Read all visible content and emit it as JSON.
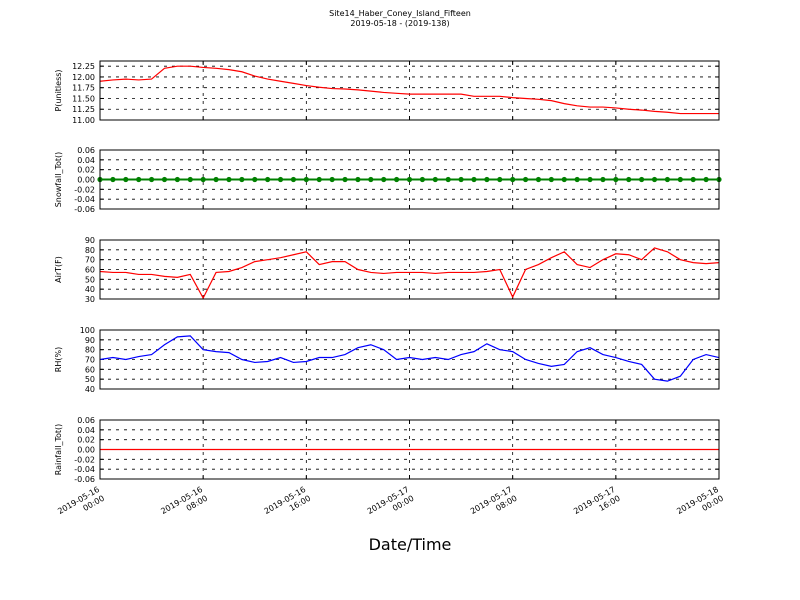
{
  "chart_data": [
    {
      "type": "line",
      "title": "Site14_Haber_Coney_Island_Fifteen",
      "subtitle": "2019-05-18 - (2019-138)",
      "ylabel": "P(unitless)",
      "grid": true,
      "ylim": [
        11.0,
        12.37
      ],
      "yticks": [
        {
          "value": 11.0,
          "label": "11.00"
        },
        11.25,
        {
          "value": 11.5,
          "label": "11.50"
        },
        11.75,
        {
          "value": 12.0,
          "label": "12.00"
        },
        12.25
      ],
      "x": [
        "2019-05-16 00:00",
        "2019-05-16 01:00",
        "2019-05-16 02:00",
        "2019-05-16 03:00",
        "2019-05-16 04:00",
        "2019-05-16 05:00",
        "2019-05-16 06:00",
        "2019-05-16 07:00",
        "2019-05-16 08:00",
        "2019-05-16 09:00",
        "2019-05-16 10:00",
        "2019-05-16 11:00",
        "2019-05-16 12:00",
        "2019-05-16 13:00",
        "2019-05-16 14:00",
        "2019-05-16 15:00",
        "2019-05-16 16:00",
        "2019-05-16 17:00",
        "2019-05-16 18:00",
        "2019-05-16 19:00",
        "2019-05-16 20:00",
        "2019-05-16 21:00",
        "2019-05-16 22:00",
        "2019-05-16 23:00",
        "2019-05-17 00:00",
        "2019-05-17 01:00",
        "2019-05-17 02:00",
        "2019-05-17 03:00",
        "2019-05-17 04:00",
        "2019-05-17 05:00",
        "2019-05-17 06:00",
        "2019-05-17 07:00",
        "2019-05-17 08:00",
        "2019-05-17 09:00",
        "2019-05-17 10:00",
        "2019-05-17 11:00",
        "2019-05-17 12:00",
        "2019-05-17 13:00",
        "2019-05-17 14:00",
        "2019-05-17 15:00",
        "2019-05-17 16:00",
        "2019-05-17 17:00",
        "2019-05-17 18:00",
        "2019-05-17 19:00",
        "2019-05-17 20:00",
        "2019-05-17 21:00",
        "2019-05-17 22:00",
        "2019-05-17 23:00",
        "2019-05-18 00:00"
      ],
      "series": [
        {
          "color": "#ff0000",
          "values": [
            11.9,
            11.93,
            11.95,
            11.93,
            11.95,
            12.2,
            12.25,
            12.25,
            12.22,
            12.2,
            12.17,
            12.12,
            12.02,
            11.95,
            11.9,
            11.85,
            11.8,
            11.76,
            11.73,
            11.72,
            11.7,
            11.67,
            11.64,
            11.62,
            11.6,
            11.6,
            11.6,
            11.6,
            11.6,
            11.55,
            11.55,
            11.55,
            11.52,
            11.5,
            11.48,
            11.45,
            11.38,
            11.33,
            11.3,
            11.3,
            11.28,
            11.25,
            11.23,
            11.2,
            11.18,
            11.15,
            11.15,
            11.15,
            11.15
          ]
        }
      ]
    },
    {
      "type": "dots",
      "ylabel": "Snowfall_Tot()",
      "grid": true,
      "ylim": [
        -0.06,
        0.06
      ],
      "yticks": [
        -0.06,
        -0.04,
        -0.02,
        {
          "value": 0,
          "label": "0.00"
        },
        0.02,
        0.04,
        0.06
      ],
      "x": [
        "2019-05-16 00:00",
        "2019-05-16 01:00",
        "2019-05-16 02:00",
        "2019-05-16 03:00",
        "2019-05-16 04:00",
        "2019-05-16 05:00",
        "2019-05-16 06:00",
        "2019-05-16 07:00",
        "2019-05-16 08:00",
        "2019-05-16 09:00",
        "2019-05-16 10:00",
        "2019-05-16 11:00",
        "2019-05-16 12:00",
        "2019-05-16 13:00",
        "2019-05-16 14:00",
        "2019-05-16 15:00",
        "2019-05-16 16:00",
        "2019-05-16 17:00",
        "2019-05-16 18:00",
        "2019-05-16 19:00",
        "2019-05-16 20:00",
        "2019-05-16 21:00",
        "2019-05-16 22:00",
        "2019-05-16 23:00",
        "2019-05-17 00:00",
        "2019-05-17 01:00",
        "2019-05-17 02:00",
        "2019-05-17 03:00",
        "2019-05-17 04:00",
        "2019-05-17 05:00",
        "2019-05-17 06:00",
        "2019-05-17 07:00",
        "2019-05-17 08:00",
        "2019-05-17 09:00",
        "2019-05-17 10:00",
        "2019-05-17 11:00",
        "2019-05-17 12:00",
        "2019-05-17 13:00",
        "2019-05-17 14:00",
        "2019-05-17 15:00",
        "2019-05-17 16:00",
        "2019-05-17 17:00",
        "2019-05-17 18:00",
        "2019-05-17 19:00",
        "2019-05-17 20:00",
        "2019-05-17 21:00",
        "2019-05-17 22:00",
        "2019-05-17 23:00",
        "2019-05-18 00:00"
      ],
      "series": [
        {
          "color": "#008000",
          "values": [
            0,
            0,
            0,
            0,
            0,
            0,
            0,
            0,
            0,
            0,
            0,
            0,
            0,
            0,
            0,
            0,
            0,
            0,
            0,
            0,
            0,
            0,
            0,
            0,
            0,
            0,
            0,
            0,
            0,
            0,
            0,
            0,
            0,
            0,
            0,
            0,
            0,
            0,
            0,
            0,
            0,
            0,
            0,
            0,
            0,
            0,
            0,
            0,
            0
          ]
        }
      ]
    },
    {
      "type": "line",
      "ylabel": "AirT(F)",
      "grid": true,
      "ylim": [
        30,
        90
      ],
      "yticks": [
        30,
        40,
        50,
        60,
        70,
        80,
        90
      ],
      "x": [
        "2019-05-16 00:00",
        "2019-05-16 01:00",
        "2019-05-16 02:00",
        "2019-05-16 03:00",
        "2019-05-16 04:00",
        "2019-05-16 05:00",
        "2019-05-16 06:00",
        "2019-05-16 07:00",
        "2019-05-16 08:00",
        "2019-05-16 09:00",
        "2019-05-16 10:00",
        "2019-05-16 11:00",
        "2019-05-16 12:00",
        "2019-05-16 13:00",
        "2019-05-16 14:00",
        "2019-05-16 15:00",
        "2019-05-16 16:00",
        "2019-05-16 17:00",
        "2019-05-16 18:00",
        "2019-05-16 19:00",
        "2019-05-16 20:00",
        "2019-05-16 21:00",
        "2019-05-16 22:00",
        "2019-05-16 23:00",
        "2019-05-17 00:00",
        "2019-05-17 01:00",
        "2019-05-17 02:00",
        "2019-05-17 03:00",
        "2019-05-17 04:00",
        "2019-05-17 05:00",
        "2019-05-17 06:00",
        "2019-05-17 07:00",
        "2019-05-17 08:00",
        "2019-05-17 09:00",
        "2019-05-17 10:00",
        "2019-05-17 11:00",
        "2019-05-17 12:00",
        "2019-05-17 13:00",
        "2019-05-17 14:00",
        "2019-05-17 15:00",
        "2019-05-17 16:00",
        "2019-05-17 17:00",
        "2019-05-17 18:00",
        "2019-05-17 19:00",
        "2019-05-17 20:00",
        "2019-05-17 21:00",
        "2019-05-17 22:00",
        "2019-05-17 23:00",
        "2019-05-18 00:00"
      ],
      "series": [
        {
          "color": "#ff0000",
          "values": [
            58,
            57,
            57,
            55,
            55,
            53,
            52,
            55,
            31,
            57,
            58,
            62,
            68,
            70,
            72,
            75,
            78,
            65,
            68,
            68,
            60,
            57,
            56,
            57,
            57,
            57,
            56,
            57,
            57,
            57,
            58,
            60,
            32,
            60,
            65,
            72,
            78,
            65,
            62,
            70,
            76,
            75,
            70,
            82,
            78,
            70,
            67,
            66,
            67
          ]
        }
      ]
    },
    {
      "type": "line",
      "ylabel": "RH(%)",
      "grid": true,
      "ylim": [
        40,
        100
      ],
      "yticks": [
        40,
        50,
        60,
        70,
        80,
        90,
        100
      ],
      "x": [
        "2019-05-16 00:00",
        "2019-05-16 01:00",
        "2019-05-16 02:00",
        "2019-05-16 03:00",
        "2019-05-16 04:00",
        "2019-05-16 05:00",
        "2019-05-16 06:00",
        "2019-05-16 07:00",
        "2019-05-16 08:00",
        "2019-05-16 09:00",
        "2019-05-16 10:00",
        "2019-05-16 11:00",
        "2019-05-16 12:00",
        "2019-05-16 13:00",
        "2019-05-16 14:00",
        "2019-05-16 15:00",
        "2019-05-16 16:00",
        "2019-05-16 17:00",
        "2019-05-16 18:00",
        "2019-05-16 19:00",
        "2019-05-16 20:00",
        "2019-05-16 21:00",
        "2019-05-16 22:00",
        "2019-05-16 23:00",
        "2019-05-17 00:00",
        "2019-05-17 01:00",
        "2019-05-17 02:00",
        "2019-05-17 03:00",
        "2019-05-17 04:00",
        "2019-05-17 05:00",
        "2019-05-17 06:00",
        "2019-05-17 07:00",
        "2019-05-17 08:00",
        "2019-05-17 09:00",
        "2019-05-17 10:00",
        "2019-05-17 11:00",
        "2019-05-17 12:00",
        "2019-05-17 13:00",
        "2019-05-17 14:00",
        "2019-05-17 15:00",
        "2019-05-17 16:00",
        "2019-05-17 17:00",
        "2019-05-17 18:00",
        "2019-05-17 19:00",
        "2019-05-17 20:00",
        "2019-05-17 21:00",
        "2019-05-17 22:00",
        "2019-05-17 23:00",
        "2019-05-18 00:00"
      ],
      "series": [
        {
          "color": "#0000ff",
          "values": [
            70,
            72,
            70,
            73,
            75,
            85,
            93,
            94,
            80,
            78,
            77,
            70,
            67,
            68,
            72,
            67,
            68,
            72,
            72,
            75,
            82,
            85,
            80,
            70,
            72,
            70,
            72,
            70,
            75,
            78,
            86,
            80,
            78,
            70,
            66,
            63,
            65,
            78,
            82,
            75,
            72,
            68,
            65,
            50,
            48,
            53,
            70,
            75,
            72
          ]
        }
      ]
    },
    {
      "type": "line",
      "ylabel": "Rainfall_Tot()",
      "xlabel": "Date/Time",
      "grid": true,
      "ylim": [
        -0.06,
        0.06
      ],
      "yticks": [
        -0.06,
        -0.04,
        -0.02,
        {
          "value": 0,
          "label": "0.00"
        },
        0.02,
        0.04,
        0.06
      ],
      "xlim": [
        "2019-05-16 00:00",
        "2019-05-18 00:00"
      ],
      "xticks": [
        "2019-05-16 00:00",
        "2019-05-16 08:00",
        "2019-05-16 16:00",
        "2019-05-17 00:00",
        "2019-05-17 08:00",
        "2019-05-17 16:00",
        "2019-05-18 00:00"
      ],
      "x": [
        "2019-05-16 00:00",
        "2019-05-16 01:00",
        "2019-05-16 02:00",
        "2019-05-16 03:00",
        "2019-05-16 04:00",
        "2019-05-16 05:00",
        "2019-05-16 06:00",
        "2019-05-16 07:00",
        "2019-05-16 08:00",
        "2019-05-16 09:00",
        "2019-05-16 10:00",
        "2019-05-16 11:00",
        "2019-05-16 12:00",
        "2019-05-16 13:00",
        "2019-05-16 14:00",
        "2019-05-16 15:00",
        "2019-05-16 16:00",
        "2019-05-16 17:00",
        "2019-05-16 18:00",
        "2019-05-16 19:00",
        "2019-05-16 20:00",
        "2019-05-16 21:00",
        "2019-05-16 22:00",
        "2019-05-16 23:00",
        "2019-05-17 00:00",
        "2019-05-17 01:00",
        "2019-05-17 02:00",
        "2019-05-17 03:00",
        "2019-05-17 04:00",
        "2019-05-17 05:00",
        "2019-05-17 06:00",
        "2019-05-17 07:00",
        "2019-05-17 08:00",
        "2019-05-17 09:00",
        "2019-05-17 10:00",
        "2019-05-17 11:00",
        "2019-05-17 12:00",
        "2019-05-17 13:00",
        "2019-05-17 14:00",
        "2019-05-17 15:00",
        "2019-05-17 16:00",
        "2019-05-17 17:00",
        "2019-05-17 18:00",
        "2019-05-17 19:00",
        "2019-05-17 20:00",
        "2019-05-17 21:00",
        "2019-05-17 22:00",
        "2019-05-17 23:00",
        "2019-05-18 00:00"
      ],
      "series": [
        {
          "color": "#ff0000",
          "values": [
            0,
            0,
            0,
            0,
            0,
            0,
            0,
            0,
            0,
            0,
            0,
            0,
            0,
            0,
            0,
            0,
            0,
            0,
            0,
            0,
            0,
            0,
            0,
            0,
            0,
            0,
            0,
            0,
            0,
            0,
            0,
            0,
            0,
            0,
            0,
            0,
            0,
            0,
            0,
            0,
            0,
            0,
            0,
            0,
            0,
            0,
            0,
            0,
            0
          ]
        }
      ]
    }
  ]
}
